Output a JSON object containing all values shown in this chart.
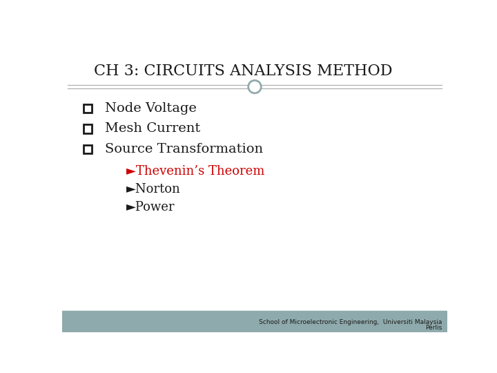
{
  "title": "CH 3: CIRCUITS ANALYSIS METHOD",
  "title_fontsize": 16,
  "title_color": "#1a1a1a",
  "bullet_items": [
    "Node Voltage",
    "Mesh Current",
    "Source Transformation"
  ],
  "sub_items": [
    {
      "text": "►Thevenin’s Theorem",
      "color": "#cc0000"
    },
    {
      "text": "►Norton",
      "color": "#1a1a1a"
    },
    {
      "text": "►Power",
      "color": "#1a1a1a"
    }
  ],
  "footer_line1": "School of Microelectronic Engineering,  Universiti Malaysia",
  "footer_line2": "Perlis",
  "footer_fontsize": 6.5,
  "footer_color": "#1a1a1a",
  "bg_color": "#ffffff",
  "footer_bg_color": "#8faaac",
  "title_line_color": "#aaaaaa",
  "circle_color": "#8faaac",
  "main_fontsize": 14,
  "sub_fontsize": 13,
  "checkbox_edge_color": "#1a1a1a",
  "checkbox_face_color": "#ffffff"
}
